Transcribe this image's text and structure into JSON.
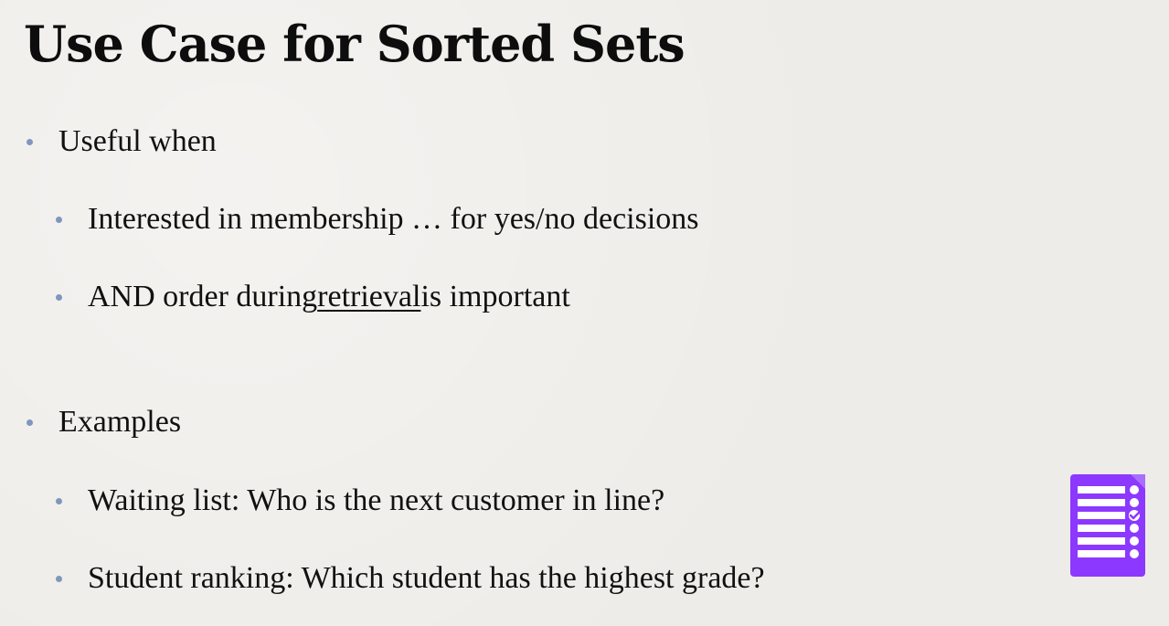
{
  "slide": {
    "title": "Use Case for Sorted Sets",
    "sections": [
      {
        "label": "Useful when",
        "items": [
          {
            "parts": [
              {
                "text": "Interested in membership … for yes/no decisions"
              }
            ]
          },
          {
            "parts": [
              {
                "text": "AND order during "
              },
              {
                "text": "retrieval",
                "underline": true
              },
              {
                "text": " is important"
              }
            ]
          }
        ]
      },
      {
        "label": "Examples",
        "items": [
          {
            "parts": [
              {
                "text": "Waiting list:  Who is the next customer in line?"
              }
            ]
          },
          {
            "parts": [
              {
                "text": "Student ranking: Which student has the highest grade?"
              }
            ]
          }
        ]
      }
    ]
  },
  "colors": {
    "background": "#eeece8",
    "bullet": "#7f97bd",
    "text": "#111111",
    "icon": "#8c38ff"
  },
  "icons": {
    "corner_icon": "form-list-icon"
  }
}
